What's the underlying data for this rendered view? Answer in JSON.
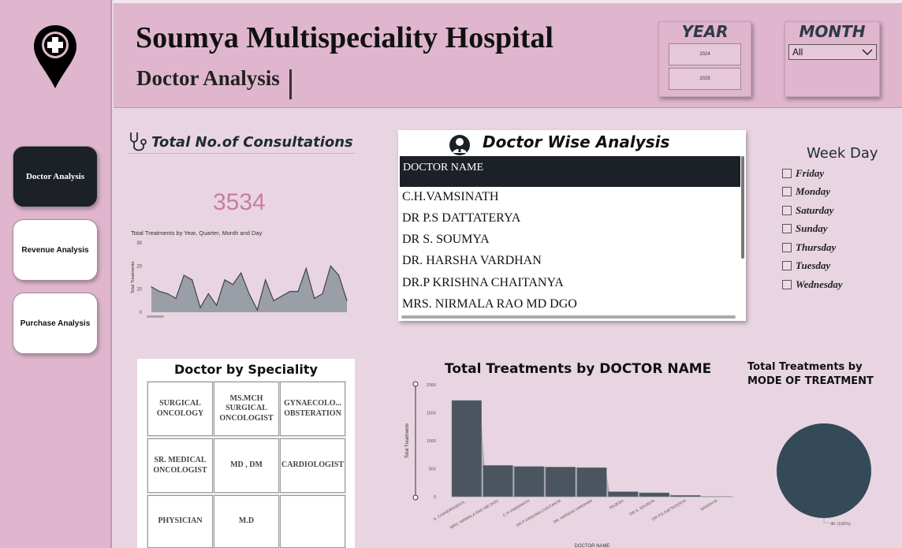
{
  "header": {
    "title": "Soumya Multispeciality Hospital",
    "subtitle": "Doctor Analysis"
  },
  "sidebar": {
    "logo_icon": "location-pin-medical-cross-icon",
    "items": [
      {
        "label": "Doctor Analysis",
        "active": true
      },
      {
        "label": "Revenue Analysis",
        "active": false
      },
      {
        "label": "Purchase Analysis",
        "active": false
      }
    ]
  },
  "filters": {
    "year": {
      "title": "YEAR",
      "options": [
        "2024",
        "2025"
      ]
    },
    "month": {
      "title": "MONTH",
      "selected": "All"
    },
    "weekday": {
      "title": "Week Day",
      "options": [
        "Friday",
        "Monday",
        "Saturday",
        "Sunday",
        "Thursday",
        "Tuesday",
        "Wednesday"
      ]
    }
  },
  "consultations": {
    "title": "Total No.of Consultations",
    "value": "3534",
    "chart_title": "Total Treatments by Year, Quarter, Month and Day"
  },
  "doctor_wise": {
    "title": "Doctor Wise Analysis",
    "column": "DOCTOR NAME",
    "rows": [
      "C.H.VAMSINATH",
      "DR P.S DATTATERYA",
      "DR S. SOUMYA",
      "DR. HARSHA VARDHAN",
      "DR.P KRISHNA CHAITANYA",
      "MRS. NIRMALA RAO MD DGO"
    ]
  },
  "speciality": {
    "title": "Doctor by Speciality",
    "cells": [
      "SURGICAL ONCOLOGY",
      "MS.MCH SURGICAL ONCOLOGIST",
      "GYNAECOLO... OBSTERATION",
      "SR. MEDICAL ONCOLOGIST",
      "MD , DM",
      "CARDIOLOGIST",
      "PHYSICIAN",
      "M.D",
      ""
    ]
  },
  "colors": {
    "accent": "#c77f9f",
    "dark": "#1c2128",
    "bar": "#4a5560",
    "pie": "#344a58"
  },
  "chart_data": [
    {
      "type": "area",
      "title": "Total Treatments by Year, Quarter, Month and Day",
      "ylabel": "Total Treatments",
      "ylim": [
        0,
        30
      ],
      "yticks": [
        0,
        10,
        20,
        30
      ],
      "values": [
        11,
        9,
        8,
        6,
        16,
        14,
        2,
        8,
        3,
        14,
        12,
        17,
        8,
        1,
        14,
        5,
        7,
        9,
        9,
        19,
        6,
        8,
        20,
        16,
        5
      ]
    },
    {
      "type": "bar",
      "title": "Total Treatments by DOCTOR NAME",
      "xlabel": "DOCTOR NAME",
      "ylabel": "Total Treatments",
      "ylim": [
        0,
        2000
      ],
      "yticks": [
        0,
        500,
        1000,
        1500,
        2000
      ],
      "categories": [
        "S. CHANDRASEKH...",
        "MRS. NIRMALA RAO MD DGO",
        "C.H.VAMSINATH",
        "DR.P KRISHNA CHAITANYA",
        "DR. HARSHA VARDHAN",
        "RAJESH",
        "DR S. SOUMYA",
        "DR P.S DATTATERYA",
        "SANDHYA"
      ],
      "values": [
        1720,
        560,
        540,
        530,
        520,
        90,
        70,
        25,
        5
      ]
    },
    {
      "type": "pie",
      "title": "Total Treatments by MODE OF TREATMENT",
      "slices": [
        {
          "label": "4K (100%)",
          "value": 100
        }
      ]
    }
  ]
}
